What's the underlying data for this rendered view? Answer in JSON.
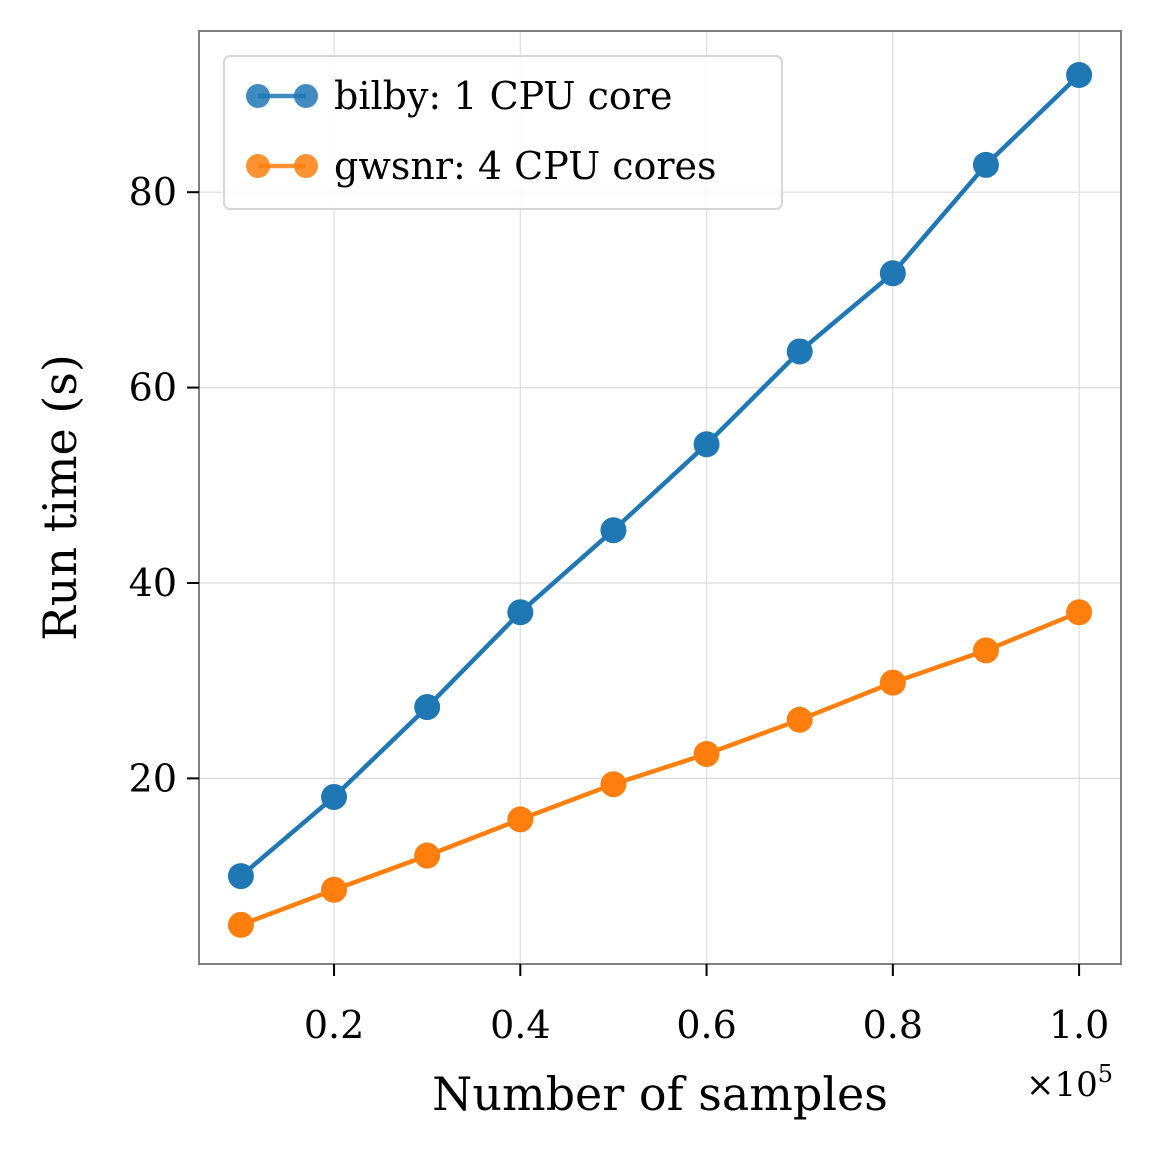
{
  "chart_data": {
    "type": "line",
    "title": "",
    "xlabel": "Number of samples",
    "ylabel": "Run time (s)",
    "x_offset_label": "×10",
    "x_offset_exponent": "5",
    "x": [
      0.1,
      0.2,
      0.3,
      0.4,
      0.5,
      0.6,
      0.7,
      0.8,
      0.9,
      1.0
    ],
    "xlim": [
      0.055,
      1.045
    ],
    "ylim": [
      1.0,
      96.5
    ],
    "xticks": [
      0.2,
      0.4,
      0.6,
      0.8,
      1.0
    ],
    "xtick_labels": [
      "0.2",
      "0.4",
      "0.6",
      "0.8",
      "1.0"
    ],
    "yticks": [
      20,
      40,
      60,
      80
    ],
    "ytick_labels": [
      "20",
      "40",
      "60",
      "80"
    ],
    "grid": true,
    "legend_position": "top-left",
    "series": [
      {
        "name": "bilby: 1 CPU core",
        "color": "#1f77b4",
        "values": [
          10.0,
          18.1,
          27.3,
          37.0,
          45.4,
          54.2,
          63.7,
          71.7,
          82.8,
          92.0
        ]
      },
      {
        "name": "gwsnr: 4 CPU cores",
        "color": "#ff7f0e",
        "values": [
          5.0,
          8.6,
          12.1,
          15.8,
          19.4,
          22.5,
          26.0,
          29.8,
          33.1,
          37.0
        ]
      }
    ]
  }
}
